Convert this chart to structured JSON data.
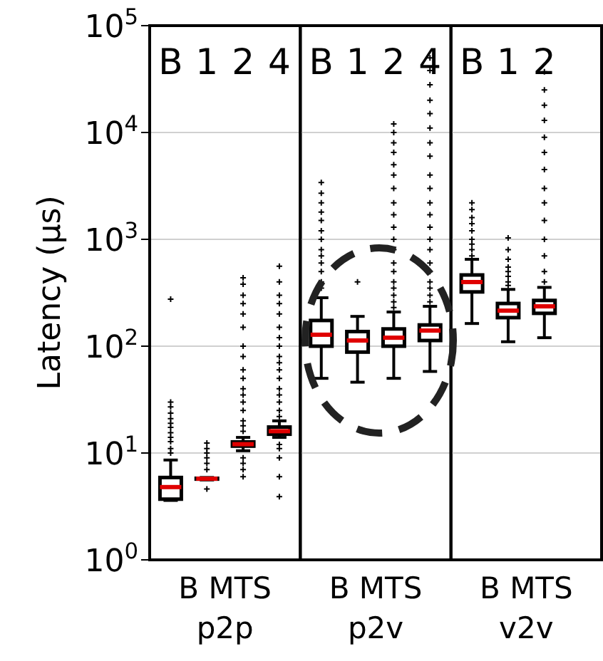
{
  "chart_data": [
    {
      "type": "box",
      "ylabel": "Latency (μs)",
      "xlabel": "B MTS\np2p",
      "categories": [
        "B",
        "1",
        "2",
        "4"
      ],
      "log": true,
      "ylim": [
        1,
        100000
      ],
      "yticks": [
        {
          "value": 1,
          "label": "10$^{0}$"
        },
        {
          "value": 10,
          "label": "10$^{1}$"
        },
        {
          "value": 100,
          "label": "10$^{2}$"
        },
        {
          "value": 1000,
          "label": "10$^{3}$"
        },
        {
          "value": 10000,
          "label": "10$^{4}$"
        },
        {
          "value": 100000,
          "label": "10$^{5}$"
        }
      ],
      "grid": "y",
      "boxes": [
        {
          "low": 3.6,
          "q1": 3.7,
          "median": 4.8,
          "q3": 5.9,
          "high": 8.6,
          "outliers": [
            10,
            11,
            12.8,
            14,
            15.5,
            17.4,
            19,
            21,
            23.6,
            27,
            30,
            275
          ]
        },
        {
          "low": 5.6,
          "q1": 5.7,
          "median": 5.75,
          "q3": 5.8,
          "high": 5.9,
          "outliers": [
            4.6,
            7,
            8,
            9,
            10,
            11,
            12.4
          ]
        },
        {
          "low": 10.5,
          "q1": 11.6,
          "median": 12.1,
          "q3": 12.7,
          "high": 14,
          "outliers": [
            6,
            7,
            8,
            9,
            16,
            18,
            20,
            25,
            30,
            35,
            40,
            50,
            60,
            80,
            100,
            150,
            200,
            250,
            300,
            380,
            437
          ]
        },
        {
          "low": 14,
          "q1": 15,
          "median": 16,
          "q3": 17.5,
          "high": 20,
          "outliers": [
            3.9,
            6,
            9,
            11,
            12,
            22,
            25,
            30,
            35,
            40,
            50,
            60,
            70,
            80,
            100,
            120,
            150,
            200,
            250,
            300,
            400,
            560
          ]
        }
      ]
    },
    {
      "type": "box",
      "xlabel": "B MTS\np2v",
      "categories": [
        "B",
        "1",
        "2",
        "4"
      ],
      "log": true,
      "ylim": [
        1,
        100000
      ],
      "yticks": [
        {
          "value": 1,
          "label": null
        },
        {
          "value": 10,
          "label": null
        },
        {
          "value": 100,
          "label": null
        },
        {
          "value": 1000,
          "label": null
        },
        {
          "value": 10000,
          "label": null
        },
        {
          "value": 100000,
          "label": null
        }
      ],
      "grid": "y",
      "tick_labels": "x",
      "boxes": [
        {
          "low": 50,
          "q1": 100,
          "median": 128,
          "q3": 174,
          "high": 284,
          "outliers": [
            350,
            400,
            500,
            600,
            700,
            800,
            1000,
            1200,
            1500,
            1800,
            2200,
            2700,
            3400
          ]
        },
        {
          "low": 46,
          "q1": 88,
          "median": 113,
          "q3": 137,
          "high": 190,
          "outliers": [
            400
          ]
        },
        {
          "low": 50,
          "q1": 100,
          "median": 120,
          "q3": 145,
          "high": 209,
          "outliers": [
            230,
            260,
            300,
            350,
            400,
            500,
            600,
            800,
            1000,
            1300,
            1700,
            2200,
            3000,
            4000,
            5000,
            6500,
            8000,
            10000,
            12000
          ]
        },
        {
          "low": 58,
          "q1": 113,
          "median": 140,
          "q3": 158,
          "high": 236,
          "outliers": [
            260,
            300,
            350,
            400,
            500,
            600,
            800,
            1000,
            1300,
            1700,
            2200,
            3000,
            4000,
            6000,
            8000,
            11000,
            15000,
            20000,
            28000,
            38000,
            50000
          ]
        }
      ]
    },
    {
      "type": "box",
      "xlabel": "B MTS\nv2v",
      "categories": [
        "B",
        "1",
        "2"
      ],
      "log": true,
      "ylim": [
        1,
        100000
      ],
      "yticks": [
        {
          "value": 1,
          "label": null
        },
        {
          "value": 10,
          "label": null
        },
        {
          "value": 100,
          "label": null
        },
        {
          "value": 1000,
          "label": null
        },
        {
          "value": 10000,
          "label": null
        },
        {
          "value": 100000,
          "label": null
        }
      ],
      "grid": "y",
      "tick_labels": "x",
      "boxes": [
        {
          "low": 163,
          "q1": 322,
          "median": 398,
          "q3": 464,
          "high": 650,
          "outliers": [
            700,
            800,
            900,
            1000,
            1200,
            1400,
            1600,
            1900,
            2200
          ]
        },
        {
          "low": 110,
          "q1": 185,
          "median": 215,
          "q3": 251,
          "high": 340,
          "outliers": [
            370,
            400,
            450,
            500,
            550,
            650,
            800,
            1030
          ]
        },
        {
          "low": 120,
          "q1": 203,
          "median": 236,
          "q3": 268,
          "high": 355,
          "outliers": [
            400,
            500,
            700,
            1000,
            1500,
            2200,
            3000,
            4500,
            6500,
            9000,
            13000,
            18000,
            25000,
            37000
          ]
        }
      ]
    }
  ]
}
